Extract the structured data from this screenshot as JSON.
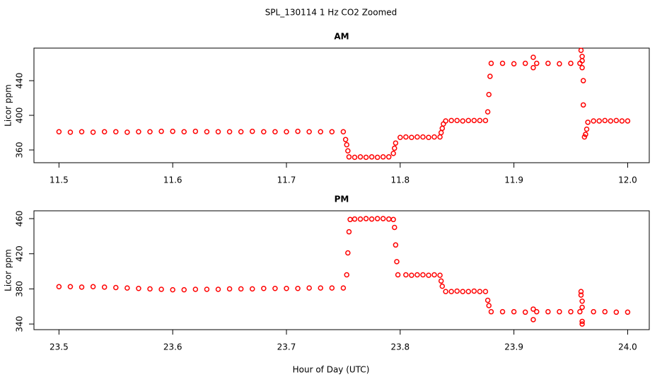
{
  "title": "SPL_130114  1 Hz CO2 Zoomed",
  "xlabel": "Hour of Day (UTC)",
  "chart_data": [
    {
      "type": "scatter",
      "title": "AM",
      "ylabel": "Licor ppm",
      "color": "#ff0000",
      "xlim": [
        11.478,
        12.019
      ],
      "ylim": [
        345.3,
        477.6
      ],
      "xticks": [
        11.5,
        11.6,
        11.7,
        11.8,
        11.9,
        {
          "value": 12,
          "label": "12.0"
        }
      ],
      "yticks": [
        360,
        400,
        440
      ],
      "x": [
        11.5,
        11.51,
        11.52,
        11.53,
        11.54,
        11.55,
        11.56,
        11.57,
        11.58,
        11.59,
        11.6,
        11.61,
        11.62,
        11.63,
        11.64,
        11.65,
        11.66,
        11.67,
        11.68,
        11.69,
        11.7,
        11.71,
        11.72,
        11.73,
        11.74,
        11.75,
        11.752,
        11.753,
        11.754,
        11.755,
        11.76,
        11.765,
        11.77,
        11.775,
        11.78,
        11.785,
        11.79,
        11.794,
        11.795,
        11.796,
        11.8,
        11.805,
        11.81,
        11.815,
        11.82,
        11.825,
        11.83,
        11.835,
        11.836,
        11.837,
        11.838,
        11.84,
        11.845,
        11.85,
        11.855,
        11.86,
        11.865,
        11.87,
        11.875,
        11.877,
        11.878,
        11.879,
        11.88,
        11.89,
        11.9,
        11.91,
        11.917,
        11.917,
        11.92,
        11.93,
        11.94,
        11.95,
        11.958,
        11.959,
        11.96,
        11.96,
        11.96,
        11.961,
        11.961,
        11.962,
        11.963,
        11.964,
        11.965,
        11.97,
        11.975,
        11.98,
        11.985,
        11.99,
        11.995,
        12.0
      ],
      "y": [
        381,
        380.5,
        381,
        380.5,
        381,
        381,
        380.5,
        381,
        381,
        381.5,
        381.5,
        381,
        381.5,
        381,
        381,
        381,
        381,
        381.5,
        381,
        381,
        381,
        381.5,
        381,
        381,
        381,
        381,
        372,
        366,
        359,
        352,
        351.5,
        352,
        351.5,
        352,
        351.5,
        352,
        352,
        356,
        362,
        368,
        374.5,
        375,
        374.5,
        375,
        375,
        374.5,
        375,
        375,
        380,
        385,
        390,
        393.5,
        394,
        394,
        393.5,
        394,
        394,
        394,
        394,
        404,
        424,
        445,
        460,
        460,
        459.5,
        460,
        467,
        455,
        460,
        460,
        459.5,
        460,
        460,
        475,
        468,
        463,
        455,
        440,
        412,
        375,
        378,
        384,
        392,
        393.5,
        393.5,
        394,
        393.5,
        394,
        393.5,
        393.5
      ]
    },
    {
      "type": "scatter",
      "title": "PM",
      "ylabel": "Licor ppm",
      "color": "#ff0000",
      "xlim": [
        23.478,
        24.019
      ],
      "ylim": [
        333.6,
        468.9
      ],
      "xticks": [
        23.5,
        23.6,
        23.7,
        23.8,
        23.9,
        {
          "value": 24,
          "label": "24.0"
        }
      ],
      "yticks": [
        340,
        380,
        420,
        460
      ],
      "x": [
        23.5,
        23.51,
        23.52,
        23.53,
        23.54,
        23.55,
        23.56,
        23.57,
        23.58,
        23.59,
        23.6,
        23.61,
        23.62,
        23.63,
        23.64,
        23.65,
        23.66,
        23.67,
        23.68,
        23.69,
        23.7,
        23.71,
        23.72,
        23.73,
        23.74,
        23.75,
        23.753,
        23.754,
        23.755,
        23.756,
        23.76,
        23.765,
        23.77,
        23.775,
        23.78,
        23.785,
        23.79,
        23.794,
        23.795,
        23.796,
        23.797,
        23.798,
        23.805,
        23.81,
        23.815,
        23.82,
        23.825,
        23.83,
        23.835,
        23.836,
        23.837,
        23.84,
        23.845,
        23.85,
        23.855,
        23.86,
        23.865,
        23.87,
        23.875,
        23.877,
        23.878,
        23.88,
        23.89,
        23.9,
        23.91,
        23.917,
        23.917,
        23.92,
        23.93,
        23.94,
        23.95,
        23.958,
        23.959,
        23.959,
        23.96,
        23.96,
        23.96,
        23.96,
        23.97,
        23.98,
        23.99,
        24.0
      ],
      "y": [
        382.5,
        382.5,
        382,
        382.5,
        382,
        381.5,
        381,
        380.5,
        380,
        379.5,
        379,
        379,
        379.5,
        379.5,
        379.5,
        380,
        380,
        380,
        380.5,
        380.5,
        380.5,
        380.5,
        381,
        381,
        381,
        381,
        396,
        421,
        445,
        459,
        459.5,
        459.5,
        460,
        459.5,
        460,
        460,
        459.5,
        459,
        450,
        430,
        411,
        396,
        396,
        395.5,
        396,
        396,
        395.5,
        396,
        395.5,
        389,
        383,
        377,
        377,
        377.5,
        377,
        377,
        377.5,
        377,
        377,
        367,
        361,
        354,
        354,
        354,
        353.5,
        357,
        345,
        354,
        354,
        354,
        354,
        354,
        377,
        373,
        366,
        359,
        343,
        340,
        354,
        354,
        353.5,
        353.5
      ]
    }
  ]
}
